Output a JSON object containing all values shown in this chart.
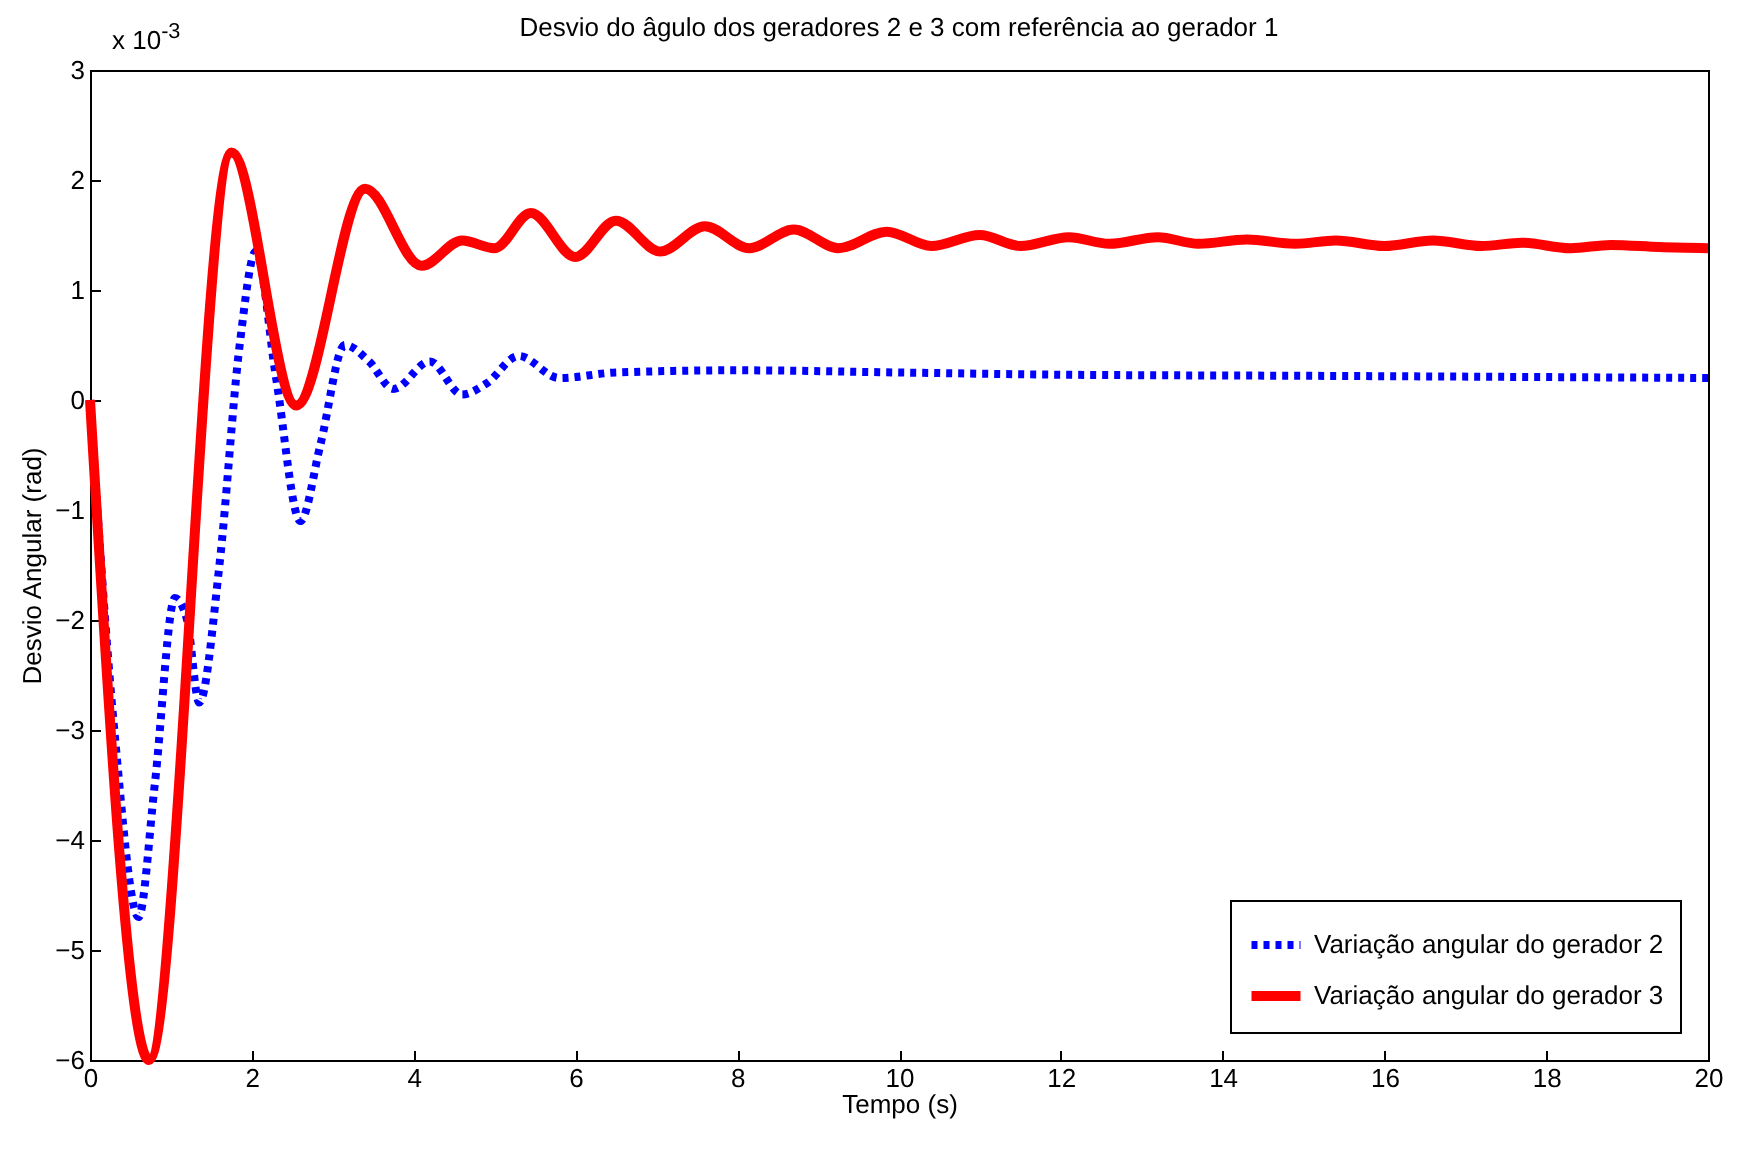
{
  "chart_data": {
    "type": "line",
    "title": "Desvio do âgulo dos geradores 2 e 3 com referência ao gerador 1",
    "xlabel": "Tempo (s)",
    "ylabel": "Desvio Angular (rad)",
    "annotations": [
      "x 10$^{-3}$"
    ],
    "xlim": [
      0,
      20
    ],
    "xticks": [
      0,
      2,
      4,
      6,
      8,
      10,
      12,
      14,
      16,
      18,
      20
    ],
    "ylim": [
      -6,
      3
    ],
    "yticks": [
      -6,
      -5,
      -4,
      -3,
      -2,
      -1,
      0,
      1,
      2,
      3
    ],
    "grid": false,
    "legend": "bottom right",
    "marker": "none",
    "series": [
      {
        "name": "Variação angular do gerador 2",
        "color": "#0000ff",
        "line_style": "dotted",
        "x": [
          0,
          0.3,
          0.6,
          0.8,
          1.05,
          1.2,
          1.35,
          1.6,
          1.85,
          2.05,
          2.3,
          2.6,
          2.85,
          3.15,
          3.45,
          3.75,
          4.2,
          4.6,
          4.9,
          5.3,
          5.8,
          6.5,
          8,
          10,
          12,
          15,
          20
        ],
        "values": [
          0,
          -3,
          -4.7,
          -3.5,
          -1.8,
          -2,
          -2.75,
          -1.5,
          0.5,
          1.35,
          0.2,
          -1.1,
          -0.4,
          0.5,
          0.35,
          0.1,
          0.35,
          0.05,
          0.15,
          0.4,
          0.2,
          0.25,
          0.27,
          0.25,
          0.23,
          0.22,
          0.2
        ]
      },
      {
        "name": "Variação angular do gerador 3",
        "color": "#ff0000",
        "line_style": "solid",
        "x": [
          0,
          0.73,
          1.75,
          2.55,
          3.4,
          4.1,
          4.6,
          5.0,
          5.45,
          6.0,
          6.5,
          7.05,
          7.6,
          8.15,
          8.7,
          9.25,
          9.85,
          10.4,
          11,
          11.5,
          12.1,
          12.6,
          13.2,
          13.7,
          14.3,
          14.9,
          15.4,
          16,
          16.6,
          17.2,
          17.7,
          18.3,
          18.8,
          19.4,
          20
        ],
        "values": [
          0,
          -6,
          2.25,
          -0.05,
          1.92,
          1.22,
          1.45,
          1.38,
          1.7,
          1.3,
          1.63,
          1.35,
          1.58,
          1.38,
          1.55,
          1.38,
          1.53,
          1.4,
          1.5,
          1.4,
          1.48,
          1.42,
          1.48,
          1.42,
          1.46,
          1.42,
          1.45,
          1.4,
          1.45,
          1.4,
          1.43,
          1.38,
          1.41,
          1.39,
          1.38
        ]
      }
    ]
  }
}
